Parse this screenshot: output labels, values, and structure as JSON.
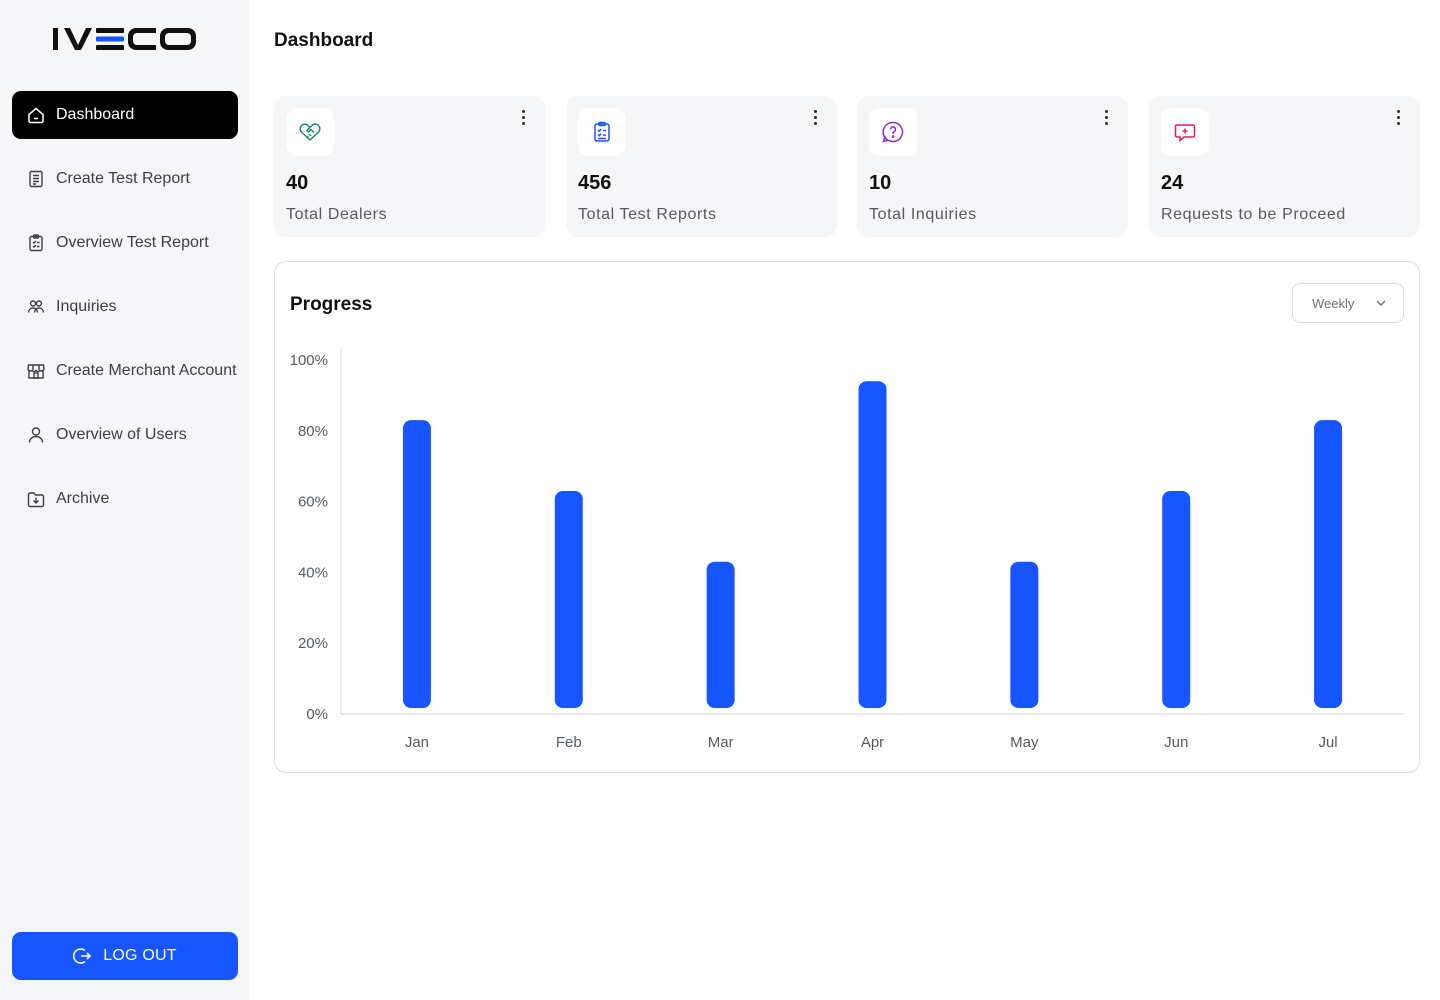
{
  "brand": {
    "name": "IVECO"
  },
  "sidebar": {
    "items": [
      {
        "label": "Dashboard",
        "icon": "home-icon",
        "active": true
      },
      {
        "label": "Create Test Report",
        "icon": "document-icon"
      },
      {
        "label": "Overview Test Report",
        "icon": "clipboard-list-icon"
      },
      {
        "label": "Inquiries",
        "icon": "users-group-icon"
      },
      {
        "label": "Create Merchant Account",
        "icon": "store-icon"
      },
      {
        "label": "Overview of Users",
        "icon": "user-icon"
      },
      {
        "label": "Archive",
        "icon": "archive-download-icon"
      }
    ],
    "logout_label": "LOG OUT"
  },
  "header": {
    "title": "Dashboard"
  },
  "cards": [
    {
      "value": "40",
      "label": "Total Dealers",
      "icon": "handshake-icon",
      "color": "#1a8a6e"
    },
    {
      "value": "456",
      "label": "Total Test Reports",
      "icon": "clipboard-check-icon",
      "color": "#1655ff"
    },
    {
      "value": "10",
      "label": "Total Inquiries",
      "icon": "question-bubble-icon",
      "color": "#8b2be2"
    },
    {
      "value": "24",
      "label": "Requests to be Proceed",
      "icon": "chat-plus-icon",
      "color": "#e5195f"
    }
  ],
  "progress": {
    "title": "Progress",
    "period": "Weekly"
  },
  "colors": {
    "accent": "#1655ff",
    "active_nav": "#000000",
    "sidebar_bg": "#f5f6f8"
  },
  "chart_data": {
    "type": "bar",
    "categories": [
      "Jan",
      "Feb",
      "Mar",
      "Apr",
      "May",
      "Jun",
      "Jul"
    ],
    "values": [
      83,
      63,
      43,
      94,
      43,
      63,
      83
    ],
    "ylim": [
      0,
      100
    ],
    "y_ticks": [
      "0%",
      "20%",
      "40%",
      "60%",
      "80%",
      "100%"
    ],
    "y_tick_values": [
      0,
      20,
      40,
      60,
      80,
      100
    ],
    "grid": false,
    "bar_color": "#1655ff"
  }
}
